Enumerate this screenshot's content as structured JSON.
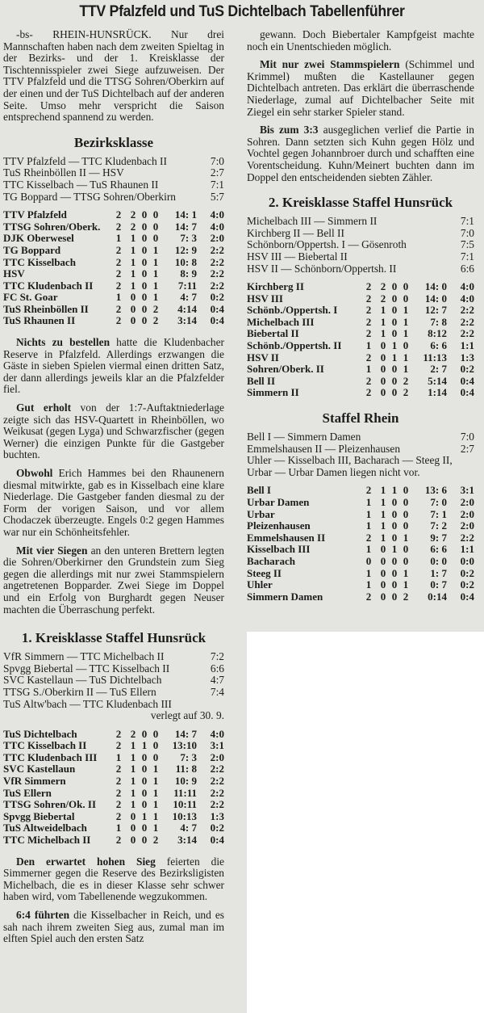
{
  "title": "TTV Pfalzfeld und TuS Dichtelbach Tabellenführer",
  "left": {
    "intro": "-bs- RHEIN-HUNSRÜCK. Nur drei Mannschaften haben nach dem zweiten Spieltag in der Bezirks- und der 1. Kreisklasse der Tischtennisspieler zwei Siege aufzuweisen. Der TTV Pfalzfeld und die TTSG Sohren/Oberkirn auf der einen und der TuS Dichtelbach auf der anderen Seite. Umso mehr verspricht die Saison entsprechend spannend zu werden.",
    "bezirksklasse": {
      "heading": "Bezirksklasse",
      "results": [
        {
          "match": "TTV Pfalzfeld — TTC Kludenbach II",
          "score": "7:0"
        },
        {
          "match": "TuS Rheinböllen II — HSV",
          "score": "2:7"
        },
        {
          "match": "TTC Kisselbach — TuS Rhaunen II",
          "score": "7:1"
        },
        {
          "match": "TG Boppard — TTSG Sohren/Oberkirn",
          "score": "5:7"
        }
      ],
      "table": [
        [
          "TTV Pfalzfeld",
          "2",
          "2",
          "0",
          "0",
          "14: 1",
          "4:0"
        ],
        [
          "TTSG Sohren/Oberk.",
          "2",
          "2",
          "0",
          "0",
          "14: 7",
          "4:0"
        ],
        [
          "DJK Oberwesel",
          "1",
          "1",
          "0",
          "0",
          "7: 3",
          "2:0"
        ],
        [
          "TG Boppard",
          "2",
          "1",
          "0",
          "1",
          "12: 9",
          "2:2"
        ],
        [
          "TTC Kisselbach",
          "2",
          "1",
          "0",
          "1",
          "10: 8",
          "2:2"
        ],
        [
          "HSV",
          "2",
          "1",
          "0",
          "1",
          "8: 9",
          "2:2"
        ],
        [
          "TTC Kludenbach II",
          "2",
          "1",
          "0",
          "1",
          "7:11",
          "2:2"
        ],
        [
          "FC St. Goar",
          "1",
          "0",
          "0",
          "1",
          "4: 7",
          "0:2"
        ],
        [
          "TuS Rheinböllen II",
          "2",
          "0",
          "0",
          "2",
          "4:14",
          "0:4"
        ],
        [
          "TuS Rhaunen II",
          "2",
          "0",
          "0",
          "2",
          "3:14",
          "0:4"
        ]
      ]
    },
    "paragraphs1": [
      {
        "lead": "Nichts zu bestellen",
        "text": " hatte die Kludenbacher Reserve in Pfalzfeld. Allerdings erzwangen die Gäste in sieben Spielen viermal einen dritten Satz, der dann allerdings jeweils klar an die Pfalzfelder fiel."
      },
      {
        "lead": "Gut erholt",
        "text": " von der 1:7-Auftaktniederlage zeigte sich das HSV-Quartett in Rheinböllen, wo Weikusat (gegen Lyga) und Schwarzfischer (gegen Werner) die einzigen Punkte für die Gastgeber buchten."
      },
      {
        "lead": "Obwohl",
        "text": " Erich Hammes bei den Rhaunenern diesmal mitwirkte, gab es in Kisselbach eine klare Niederlage. Die Gastgeber fanden diesmal zu der Form der vorigen Saison, und vor allem Chodaczek überzeugte. Engels 0:2 gegen Hammes war nur ein Schönheitsfehler."
      },
      {
        "lead": "Mit vier Siegen",
        "text": " an den unteren Brettern legten die Sohren/Oberkirner den Grundstein zum Sieg gegen die allerdings mit nur zwei Stammspielern angetretenen Bopparder. Zwei Siege im Doppel und ein Erfolg von Burghardt gegen Neuser machten die Überraschung perfekt."
      }
    ],
    "kreis1": {
      "heading": "1. Kreisklasse Staffel Hunsrück",
      "results": [
        {
          "match": "VfR Simmern — TTC Michelbach II",
          "score": "7:2"
        },
        {
          "match": "Spvgg Biebertal — TTC Kisselbach II",
          "score": "6:6"
        },
        {
          "match": "SVC Kastellaun — TuS Dichtelbach",
          "score": "4:7"
        },
        {
          "match": "TTSG S./Oberkirn II — TuS Ellern",
          "score": "7:4"
        },
        {
          "match": "TuS Altw'bach — TTC Kludenbach III",
          "score": ""
        }
      ],
      "note": "verlegt auf 30. 9.",
      "table": [
        [
          "TuS Dichtelbach",
          "2",
          "2",
          "0",
          "0",
          "14: 7",
          "4:0"
        ],
        [
          "TTC Kisselbach II",
          "2",
          "1",
          "1",
          "0",
          "13:10",
          "3:1"
        ],
        [
          "TTC Kludenbach III",
          "1",
          "1",
          "0",
          "0",
          "7: 3",
          "2:0"
        ],
        [
          "SVC Kastellaun",
          "2",
          "1",
          "0",
          "1",
          "11: 8",
          "2:2"
        ],
        [
          "VfR Simmern",
          "2",
          "1",
          "0",
          "1",
          "10: 9",
          "2:2"
        ],
        [
          "TuS Ellern",
          "2",
          "1",
          "0",
          "1",
          "11:11",
          "2:2"
        ],
        [
          "TTSG Sohren/Ok. II",
          "2",
          "1",
          "0",
          "1",
          "10:11",
          "2:2"
        ],
        [
          "Spvgg Biebertal",
          "2",
          "0",
          "1",
          "1",
          "10:13",
          "1:3"
        ],
        [
          "TuS Altweidelbach",
          "1",
          "0",
          "0",
          "1",
          "4: 7",
          "0:2"
        ],
        [
          "TTC Michelbach II",
          "2",
          "0",
          "0",
          "2",
          "3:14",
          "0:4"
        ]
      ]
    },
    "paragraphs2": [
      {
        "lead": "Den erwartet hohen Sieg",
        "text": " feierten die Simmerner gegen die Reserve des Bezirksligisten Michelbach, die es in dieser Klasse sehr schwer haben wird, vom Tabellenende wegzukommen."
      },
      {
        "lead": "6:4 führten",
        "text": " die Kisselbacher in Reich, und es sah nach ihrem zweiten Sieg aus, zumal man im elften Spiel auch den ersten Satz"
      }
    ]
  },
  "right": {
    "paragraphs": [
      {
        "lead": "",
        "text": "gewann. Doch Biebertaler Kampfgeist machte noch ein Unentschieden möglich."
      },
      {
        "lead": "Mit nur zwei Stammspielern",
        "text": " (Schimmel und Krimmel) mußten die Kastellauner gegen Dichtelbach antreten. Das erklärt die überraschende Niederlage, zumal auf Dichtelbacher Seite mit Ziegel ein sehr starker Spieler stand."
      },
      {
        "lead": "Bis zum 3:3",
        "text": " ausgeglichen verlief die Partie in Sohren. Dann setzten sich Kuhn gegen Hölz und Vochtel gegen Johannbroer durch und schafften eine Vorentscheidung. Kuhn/Meinert buchten dann im Doppel den entscheidenden siebten Zähler."
      }
    ],
    "kreis2": {
      "heading": "2. Kreisklasse Staffel Hunsrück",
      "results": [
        {
          "match": "Michelbach III — Simmern II",
          "score": "7:1"
        },
        {
          "match": "Kirchberg II — Bell II",
          "score": "7:0"
        },
        {
          "match": "Schönborn/Oppertsh. I — Gösenroth",
          "score": "7:5"
        },
        {
          "match": "HSV III — Biebertal II",
          "score": "7:1"
        },
        {
          "match": "HSV II — Schönborn/Oppertsh. II",
          "score": "6:6"
        }
      ],
      "table": [
        [
          "Kirchberg II",
          "2",
          "2",
          "0",
          "0",
          "14: 0",
          "4:0"
        ],
        [
          "HSV III",
          "2",
          "2",
          "0",
          "0",
          "14: 0",
          "4:0"
        ],
        [
          "Schönb./Oppertsh. I",
          "2",
          "1",
          "0",
          "1",
          "12: 7",
          "2:2"
        ],
        [
          "Michelbach III",
          "2",
          "1",
          "0",
          "1",
          "7: 8",
          "2:2"
        ],
        [
          "Biebertal II",
          "2",
          "1",
          "0",
          "1",
          "8:12",
          "2:2"
        ],
        [
          "Schönb./Oppertsh. II",
          "1",
          "0",
          "1",
          "0",
          "6: 6",
          "1:1"
        ],
        [
          "HSV II",
          "2",
          "0",
          "1",
          "1",
          "11:13",
          "1:3"
        ],
        [
          "Sohren/Oberk. II",
          "1",
          "0",
          "0",
          "1",
          "2: 7",
          "0:2"
        ],
        [
          "Bell II",
          "2",
          "0",
          "0",
          "2",
          "5:14",
          "0:4"
        ],
        [
          "Simmern II",
          "2",
          "0",
          "0",
          "2",
          "1:14",
          "0:4"
        ]
      ]
    },
    "rhein": {
      "heading": "Staffel Rhein",
      "results": [
        {
          "match": "Bell I — Simmern Damen",
          "score": "7:0"
        },
        {
          "match": "Emmelshausen II — Pleizenhausen",
          "score": "2:7"
        }
      ],
      "note": "Uhler — Kisselbach III, Bacharach — Steeg II, Urbar — Urbar Damen liegen nicht vor.",
      "table": [
        [
          "Bell I",
          "2",
          "1",
          "1",
          "0",
          "13: 6",
          "3:1"
        ],
        [
          "Urbar Damen",
          "1",
          "1",
          "0",
          "0",
          "7: 0",
          "2:0"
        ],
        [
          "Urbar",
          "1",
          "1",
          "0",
          "0",
          "7: 1",
          "2:0"
        ],
        [
          "Pleizenhausen",
          "1",
          "1",
          "0",
          "0",
          "7: 2",
          "2:0"
        ],
        [
          "Emmelshausen II",
          "2",
          "1",
          "0",
          "1",
          "9: 7",
          "2:2"
        ],
        [
          "Kisselbach III",
          "1",
          "0",
          "1",
          "0",
          "6: 6",
          "1:1"
        ],
        [
          "Bacharach",
          "0",
          "0",
          "0",
          "0",
          "0: 0",
          "0:0"
        ],
        [
          "Steeg II",
          "1",
          "0",
          "0",
          "1",
          "1: 7",
          "0:2"
        ],
        [
          "Uhler",
          "1",
          "0",
          "0",
          "1",
          "0: 7",
          "0:2"
        ],
        [
          "Simmern Damen",
          "2",
          "0",
          "0",
          "2",
          "0:14",
          "0:4"
        ]
      ]
    }
  }
}
